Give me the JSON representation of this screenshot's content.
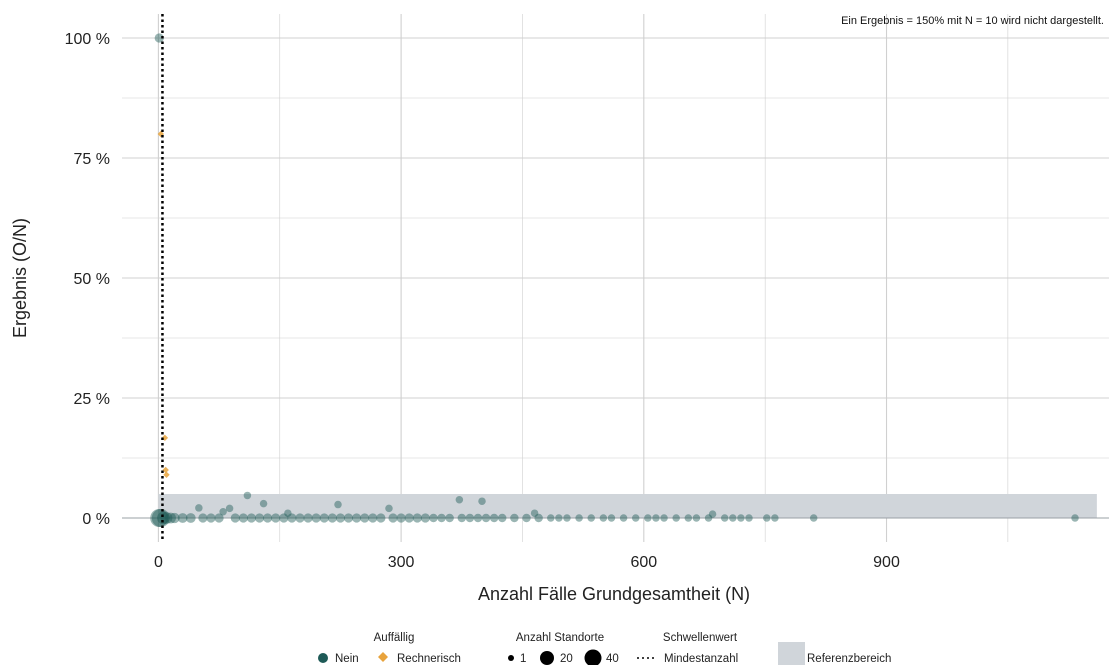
{
  "colors": {
    "nein": "#1e5a57",
    "rechnerisch": "#e8a33c",
    "reference": "#d0d5da",
    "grid": "#d0d0d0"
  },
  "note": "Ein Ergebnis = 150% mit N = 10 wird nicht dargestellt.",
  "chart_data": {
    "type": "scatter",
    "xlabel": "Anzahl Fälle Grundgesamtheit (N)",
    "ylabel": "Ergebnis (O/N)",
    "xlim": [
      -45,
      1175
    ],
    "ylim": [
      -0.05,
      1.05
    ],
    "x_ticks": [
      0,
      300,
      600,
      900
    ],
    "x_tick_labels": [
      "0",
      "300",
      "600",
      "900"
    ],
    "y_ticks": [
      0,
      0.25,
      0.5,
      0.75,
      1.0
    ],
    "y_tick_labels": [
      "0 %",
      "25 %",
      "50 %",
      "75 %",
      "100 %"
    ],
    "reference_range": {
      "x": [
        0,
        1175
      ],
      "y": [
        0,
        0.05
      ]
    },
    "mindestanzahl": 5,
    "series": [
      {
        "name": "Nein",
        "points": [
          [
            1,
            1.0,
            3
          ],
          [
            1,
            0.0,
            40
          ],
          [
            3,
            0.0,
            20
          ],
          [
            6,
            0.0,
            10
          ],
          [
            10,
            0.0,
            8
          ],
          [
            15,
            0.0,
            6
          ],
          [
            20,
            0.0,
            5
          ],
          [
            30,
            0.0,
            4
          ],
          [
            40,
            0.0,
            4
          ],
          [
            50,
            0.021,
            1
          ],
          [
            55,
            0.0,
            3
          ],
          [
            65,
            0.0,
            3
          ],
          [
            75,
            0.0,
            3
          ],
          [
            80,
            0.013,
            1
          ],
          [
            88,
            0.02,
            1
          ],
          [
            95,
            0.0,
            3
          ],
          [
            105,
            0.0,
            3
          ],
          [
            110,
            0.047,
            1
          ],
          [
            115,
            0.0,
            3
          ],
          [
            125,
            0.0,
            3
          ],
          [
            130,
            0.03,
            1
          ],
          [
            135,
            0.0,
            3
          ],
          [
            145,
            0.0,
            3
          ],
          [
            155,
            0.0,
            3
          ],
          [
            160,
            0.01,
            1
          ],
          [
            165,
            0.0,
            3
          ],
          [
            175,
            0.0,
            3
          ],
          [
            185,
            0.0,
            3
          ],
          [
            195,
            0.0,
            3
          ],
          [
            205,
            0.0,
            3
          ],
          [
            215,
            0.0,
            3
          ],
          [
            222,
            0.028,
            1
          ],
          [
            225,
            0.0,
            3
          ],
          [
            235,
            0.0,
            3
          ],
          [
            245,
            0.0,
            3
          ],
          [
            255,
            0.0,
            3
          ],
          [
            265,
            0.0,
            3
          ],
          [
            275,
            0.0,
            3
          ],
          [
            285,
            0.02,
            1
          ],
          [
            290,
            0.0,
            3
          ],
          [
            300,
            0.0,
            3
          ],
          [
            310,
            0.0,
            3
          ],
          [
            320,
            0.0,
            3
          ],
          [
            330,
            0.0,
            3
          ],
          [
            340,
            0.0,
            2
          ],
          [
            350,
            0.0,
            2
          ],
          [
            360,
            0.0,
            2
          ],
          [
            372,
            0.038,
            1
          ],
          [
            375,
            0.0,
            2
          ],
          [
            385,
            0.0,
            2
          ],
          [
            395,
            0.0,
            2
          ],
          [
            400,
            0.035,
            1
          ],
          [
            405,
            0.0,
            2
          ],
          [
            415,
            0.0,
            2
          ],
          [
            425,
            0.0,
            2
          ],
          [
            440,
            0.0,
            2
          ],
          [
            455,
            0.0,
            2
          ],
          [
            465,
            0.01,
            1
          ],
          [
            470,
            0.0,
            2
          ],
          [
            485,
            0.0,
            1
          ],
          [
            495,
            0.0,
            1
          ],
          [
            505,
            0.0,
            1
          ],
          [
            520,
            0.0,
            1
          ],
          [
            535,
            0.0,
            1
          ],
          [
            550,
            0.0,
            1
          ],
          [
            560,
            0.0,
            1
          ],
          [
            575,
            0.0,
            1
          ],
          [
            590,
            0.0,
            1
          ],
          [
            605,
            0.0,
            1
          ],
          [
            615,
            0.0,
            1
          ],
          [
            625,
            0.0,
            1
          ],
          [
            640,
            0.0,
            1
          ],
          [
            655,
            0.0,
            1
          ],
          [
            665,
            0.0,
            1
          ],
          [
            680,
            0.0,
            1
          ],
          [
            685,
            0.008,
            1
          ],
          [
            700,
            0.0,
            1
          ],
          [
            710,
            0.0,
            1
          ],
          [
            720,
            0.0,
            1
          ],
          [
            730,
            0.0,
            1
          ],
          [
            752,
            0.0,
            1
          ],
          [
            762,
            0.0,
            1
          ],
          [
            810,
            0.0,
            1
          ],
          [
            1133,
            0.0,
            1
          ]
        ]
      },
      {
        "name": "Rechnerisch",
        "points": [
          [
            3,
            0.8,
            1
          ],
          [
            8,
            0.167,
            1
          ],
          [
            9,
            0.1,
            1
          ],
          [
            10,
            0.09,
            1
          ]
        ]
      }
    ]
  },
  "legend": {
    "auffaellig": {
      "title": "Auffällig",
      "items": [
        "Nein",
        "Rechnerisch"
      ]
    },
    "standorte": {
      "title": "Anzahl Standorte",
      "items": [
        "1",
        "20",
        "40"
      ]
    },
    "schwellenwert": {
      "title": "Schwellenwert",
      "items": [
        "Mindestanzahl"
      ]
    },
    "referenz": {
      "items": [
        "Referenzbereich"
      ]
    }
  }
}
